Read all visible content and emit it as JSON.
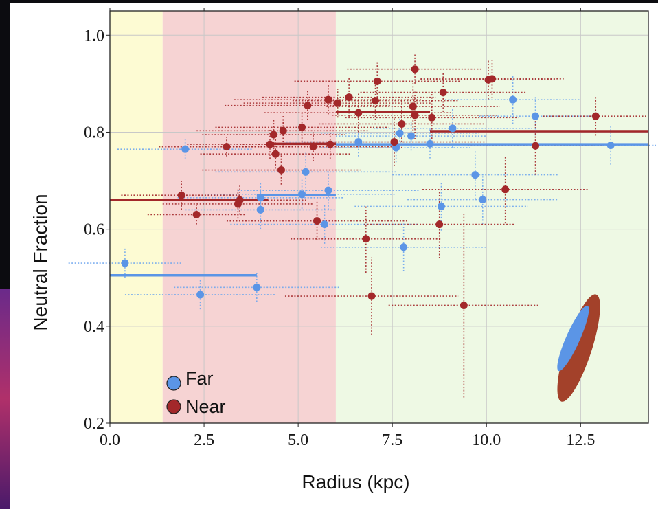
{
  "colors": {
    "far": "#5b95e6",
    "far_errbar": "#6ea6ee",
    "near": "#a3282a",
    "near_errbar": "#a3282a",
    "region_1": "#fdfbd3",
    "region_2": "#f6d3d3",
    "region_3": "#eef9e4",
    "grid": "#c8c8c8",
    "ellipse_far": "#5b95e6",
    "ellipse_near": "#a3412a"
  },
  "chart_data": {
    "type": "scatter",
    "title": "",
    "xlabel": "Radius (kpc)",
    "ylabel": "Neutral Fraction",
    "xlim": [
      0,
      14.3
    ],
    "ylim": [
      0.2,
      1.05
    ],
    "xticks": [
      "0.0",
      "2.5",
      "5.0",
      "7.5",
      "10.0",
      "12.5"
    ],
    "yticks": [
      "0.2",
      "0.4",
      "0.6",
      "0.8",
      "1.0"
    ],
    "grid": true,
    "legend": {
      "placement": "bottom-left",
      "entries": [
        "Far",
        "Near"
      ]
    },
    "shaded_regions": [
      {
        "x0": 0,
        "x1": 1.4,
        "color": "#fdfbd3"
      },
      {
        "x0": 1.4,
        "x1": 6.0,
        "color": "#f6d3d3"
      },
      {
        "x0": 6.0,
        "x1": 14.3,
        "color": "#eef9e4"
      }
    ],
    "series": [
      {
        "name": "Far",
        "color": "#5b95e6",
        "points": [
          {
            "x": 0.4,
            "y": 0.53,
            "xerr": 1.5,
            "yerr": 0.03
          },
          {
            "x": 2.0,
            "y": 0.765,
            "xerr": 1.8,
            "yerr": 0.02
          },
          {
            "x": 2.4,
            "y": 0.465,
            "xerr": 2.0,
            "yerr": 0.03
          },
          {
            "x": 3.9,
            "y": 0.48,
            "xerr": 2.2,
            "yerr": 0.03
          },
          {
            "x": 4.0,
            "y": 0.665,
            "xerr": 2.2,
            "yerr": 0.03
          },
          {
            "x": 4.0,
            "y": 0.64,
            "xerr": 2.0,
            "yerr": 0.04
          },
          {
            "x": 5.1,
            "y": 0.672,
            "xerr": 2.5,
            "yerr": 0.03
          },
          {
            "x": 5.2,
            "y": 0.718,
            "xerr": 2.4,
            "yerr": 0.04
          },
          {
            "x": 5.7,
            "y": 0.61,
            "xerr": 2.5,
            "yerr": 0.04
          },
          {
            "x": 5.8,
            "y": 0.68,
            "xerr": 2.4,
            "yerr": 0.04
          },
          {
            "x": 6.6,
            "y": 0.78,
            "xerr": 2.0,
            "yerr": 0.03
          },
          {
            "x": 7.6,
            "y": 0.768,
            "xerr": 2.0,
            "yerr": 0.03
          },
          {
            "x": 7.7,
            "y": 0.798,
            "xerr": 2.1,
            "yerr": 0.03
          },
          {
            "x": 7.8,
            "y": 0.563,
            "xerr": 2.2,
            "yerr": 0.05
          },
          {
            "x": 8.0,
            "y": 0.792,
            "xerr": 2.0,
            "yerr": 0.03
          },
          {
            "x": 8.5,
            "y": 0.776,
            "xerr": 2.2,
            "yerr": 0.03
          },
          {
            "x": 8.8,
            "y": 0.647,
            "xerr": 2.3,
            "yerr": 0.05
          },
          {
            "x": 9.1,
            "y": 0.808,
            "xerr": 2.1,
            "yerr": 0.04
          },
          {
            "x": 9.7,
            "y": 0.712,
            "xerr": 2.2,
            "yerr": 0.05
          },
          {
            "x": 9.9,
            "y": 0.661,
            "xerr": 2.0,
            "yerr": 0.05
          },
          {
            "x": 10.7,
            "y": 0.867,
            "xerr": 1.8,
            "yerr": 0.05
          },
          {
            "x": 11.3,
            "y": 0.833,
            "xerr": 1.5,
            "yerr": 0.04
          },
          {
            "x": 13.3,
            "y": 0.773,
            "xerr": 1.2,
            "yerr": 0.04
          }
        ],
        "binned": [
          {
            "x0": 0.0,
            "x1": 3.9,
            "y": 0.505
          },
          {
            "x0": 3.9,
            "x1": 6.0,
            "y": 0.67
          },
          {
            "x0": 6.0,
            "x1": 14.3,
            "y": 0.775
          }
        ]
      },
      {
        "name": "Near",
        "color": "#a3282a",
        "points": [
          {
            "x": 1.9,
            "y": 0.67,
            "xerr": 1.6,
            "yerr": 0.03
          },
          {
            "x": 2.3,
            "y": 0.63,
            "xerr": 1.3,
            "yerr": 0.02
          },
          {
            "x": 3.1,
            "y": 0.77,
            "xerr": 1.8,
            "yerr": 0.02
          },
          {
            "x": 3.4,
            "y": 0.652,
            "xerr": 2.0,
            "yerr": 0.03
          },
          {
            "x": 3.45,
            "y": 0.66,
            "xerr": 1.8,
            "yerr": 0.03
          },
          {
            "x": 4.25,
            "y": 0.775,
            "xerr": 2.2,
            "yerr": 0.03
          },
          {
            "x": 4.35,
            "y": 0.795,
            "xerr": 1.9,
            "yerr": 0.03
          },
          {
            "x": 4.4,
            "y": 0.755,
            "xerr": 2.0,
            "yerr": 0.03
          },
          {
            "x": 4.55,
            "y": 0.722,
            "xerr": 2.1,
            "yerr": 0.03
          },
          {
            "x": 4.6,
            "y": 0.803,
            "xerr": 2.3,
            "yerr": 0.03
          },
          {
            "x": 5.1,
            "y": 0.81,
            "xerr": 2.3,
            "yerr": 0.03
          },
          {
            "x": 5.25,
            "y": 0.855,
            "xerr": 2.2,
            "yerr": 0.03
          },
          {
            "x": 5.4,
            "y": 0.77,
            "xerr": 2.3,
            "yerr": 0.03
          },
          {
            "x": 5.5,
            "y": 0.617,
            "xerr": 2.4,
            "yerr": 0.04
          },
          {
            "x": 5.8,
            "y": 0.867,
            "xerr": 2.5,
            "yerr": 0.03
          },
          {
            "x": 5.85,
            "y": 0.775,
            "xerr": 2.4,
            "yerr": 0.03
          },
          {
            "x": 6.05,
            "y": 0.86,
            "xerr": 2.5,
            "yerr": 0.03
          },
          {
            "x": 6.35,
            "y": 0.872,
            "xerr": 2.3,
            "yerr": 0.04
          },
          {
            "x": 6.6,
            "y": 0.84,
            "xerr": 2.5,
            "yerr": 0.04
          },
          {
            "x": 6.8,
            "y": 0.58,
            "xerr": 2.0,
            "yerr": 0.07
          },
          {
            "x": 6.95,
            "y": 0.462,
            "xerr": 2.3,
            "yerr": 0.08
          },
          {
            "x": 7.05,
            "y": 0.865,
            "xerr": 2.2,
            "yerr": 0.04
          },
          {
            "x": 7.1,
            "y": 0.905,
            "xerr": 2.2,
            "yerr": 0.04
          },
          {
            "x": 7.55,
            "y": 0.78,
            "xerr": 2.4,
            "yerr": 0.05
          },
          {
            "x": 7.75,
            "y": 0.817,
            "xerr": 2.2,
            "yerr": 0.05
          },
          {
            "x": 8.05,
            "y": 0.853,
            "xerr": 2.3,
            "yerr": 0.05
          },
          {
            "x": 8.1,
            "y": 0.835,
            "xerr": 2.2,
            "yerr": 0.05
          },
          {
            "x": 8.1,
            "y": 0.93,
            "xerr": 1.8,
            "yerr": 0.03
          },
          {
            "x": 8.55,
            "y": 0.83,
            "xerr": 2.3,
            "yerr": 0.05
          },
          {
            "x": 8.75,
            "y": 0.61,
            "xerr": 2.0,
            "yerr": 0.07
          },
          {
            "x": 8.85,
            "y": 0.882,
            "xerr": 2.2,
            "yerr": 0.04
          },
          {
            "x": 9.4,
            "y": 0.443,
            "xerr": 2.0,
            "yerr": 0.19
          },
          {
            "x": 10.05,
            "y": 0.908,
            "xerr": 1.8,
            "yerr": 0.04
          },
          {
            "x": 10.15,
            "y": 0.91,
            "xerr": 1.9,
            "yerr": 0.04
          },
          {
            "x": 10.5,
            "y": 0.682,
            "xerr": 2.2,
            "yerr": 0.07
          },
          {
            "x": 11.3,
            "y": 0.772,
            "xerr": 1.8,
            "yerr": 0.06
          },
          {
            "x": 12.9,
            "y": 0.833,
            "xerr": 1.4,
            "yerr": 0.04
          }
        ],
        "binned": [
          {
            "x0": 0.0,
            "x1": 4.2,
            "y": 0.66
          },
          {
            "x0": 4.2,
            "x1": 6.0,
            "y": 0.776
          },
          {
            "x0": 6.0,
            "x1": 8.5,
            "y": 0.842
          },
          {
            "x0": 8.5,
            "x1": 14.3,
            "y": 0.802
          }
        ]
      }
    ],
    "covariance_ellipses": [
      {
        "series": "Near",
        "cx": 12.45,
        "cy": 0.355,
        "rx": 0.22,
        "ry": 0.11,
        "angle_deg": 72
      },
      {
        "series": "Far",
        "cx": 12.3,
        "cy": 0.375,
        "rx": 0.12,
        "ry": 0.085,
        "angle_deg": 66
      }
    ]
  }
}
